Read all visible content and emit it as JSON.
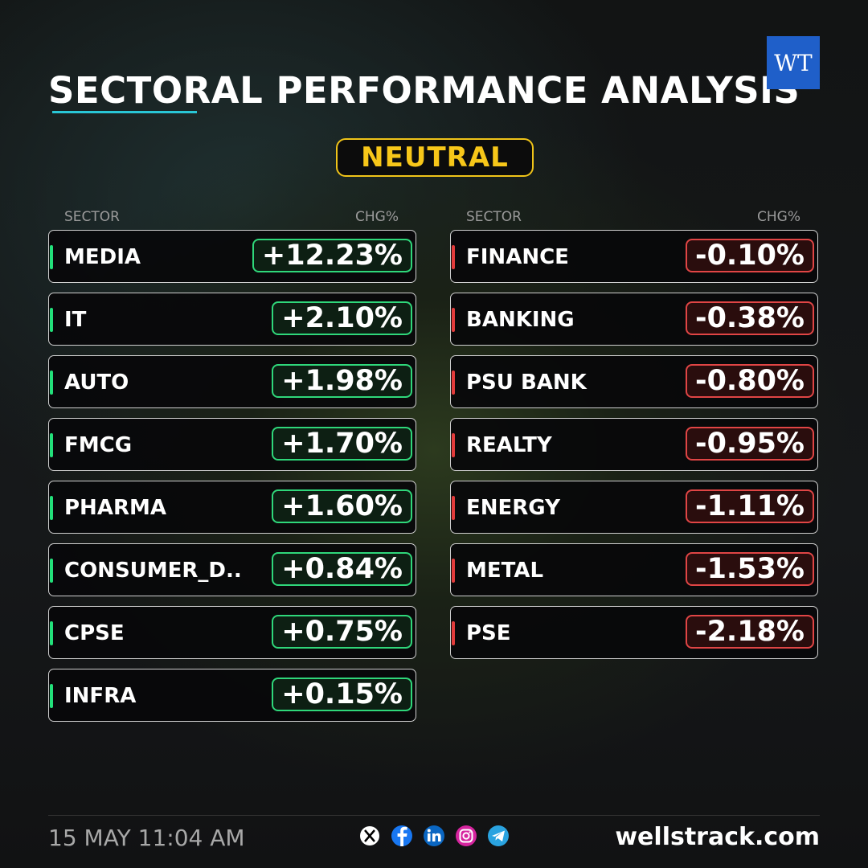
{
  "header": {
    "title": "SECTORAL PERFORMANCE ANALYSIS",
    "sentiment": "NEUTRAL",
    "logo": "WT"
  },
  "tables": [
    {
      "columns": [
        "SECTOR",
        "CHG%"
      ],
      "rows": [
        [
          "MEDIA",
          "+12.23%"
        ],
        [
          "IT",
          "+2.10%"
        ],
        [
          "AUTO",
          "+1.98%"
        ],
        [
          "FMCG",
          "+1.70%"
        ],
        [
          "PHARMA",
          "+1.60%"
        ],
        [
          "CONSUMER_D..",
          "+0.84%"
        ],
        [
          "CPSE",
          "+0.75%"
        ],
        [
          "INFRA",
          "+0.15%"
        ]
      ]
    },
    {
      "columns": [
        "SECTOR",
        "CHG%"
      ],
      "rows": [
        [
          "FINANCE",
          "-0.10%"
        ],
        [
          "BANKING",
          "-0.38%"
        ],
        [
          "PSU BANK",
          "-0.80%"
        ],
        [
          "REALTY",
          "-0.95%"
        ],
        [
          "ENERGY",
          "-1.11%"
        ],
        [
          "METAL",
          "-1.53%"
        ],
        [
          "PSE",
          "-2.18%"
        ]
      ]
    }
  ],
  "footer": {
    "timestamp": "15 MAY 11:04 AM",
    "website": "wellstrack.com"
  }
}
